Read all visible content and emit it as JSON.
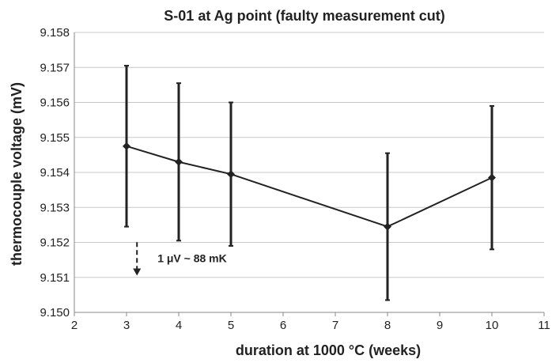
{
  "chart_data": {
    "type": "line",
    "title": "S-01 at Ag point (faulty measurement cut)",
    "xlabel": "duration at 1000 °C (weeks)",
    "ylabel": "thermocouple voltage (mV)",
    "xlim": [
      2,
      11
    ],
    "ylim": [
      9.15,
      9.158
    ],
    "x_ticks": [
      "2",
      "3",
      "4",
      "5",
      "6",
      "7",
      "8",
      "9",
      "10",
      "11"
    ],
    "y_ticks": [
      "9.150",
      "9.151",
      "9.152",
      "9.153",
      "9.154",
      "9.155",
      "9.156",
      "9.157",
      "9.158"
    ],
    "grid": "horizontal",
    "series": [
      {
        "x": [
          3,
          4,
          5,
          8,
          10
        ],
        "y": [
          9.15475,
          9.1543,
          9.15395,
          9.15245,
          9.15385
        ],
        "err_low": [
          9.15245,
          9.15205,
          9.1519,
          9.15035,
          9.1518
        ],
        "err_high": [
          9.15705,
          9.15655,
          9.156,
          9.15455,
          9.1559
        ]
      }
    ],
    "annotation": {
      "text": "1 μV ~ 88 mK",
      "arrow_x": 3.2,
      "arrow_from": 9.15205,
      "arrow_to": 9.15105
    },
    "colors": {
      "line": "#222222",
      "grid": "#c8c8c8",
      "axis": "#888888"
    }
  }
}
